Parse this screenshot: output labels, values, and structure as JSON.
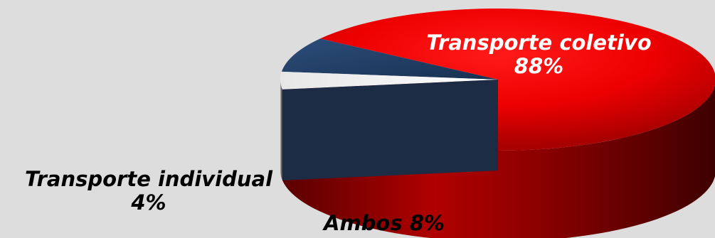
{
  "chart_data": {
    "type": "pie",
    "title": "",
    "slices": [
      {
        "label": "Transporte coletivo",
        "value": 88,
        "value_label": "88%",
        "color": "#e00000"
      },
      {
        "label": "Ambos",
        "value": 8,
        "value_label": "8%",
        "color": "#1f3d66"
      },
      {
        "label": "Transporte individual",
        "value": 4,
        "value_label": "4%",
        "color": "#9a9a9a"
      }
    ],
    "legend": "none",
    "style": "3d-exploded"
  }
}
